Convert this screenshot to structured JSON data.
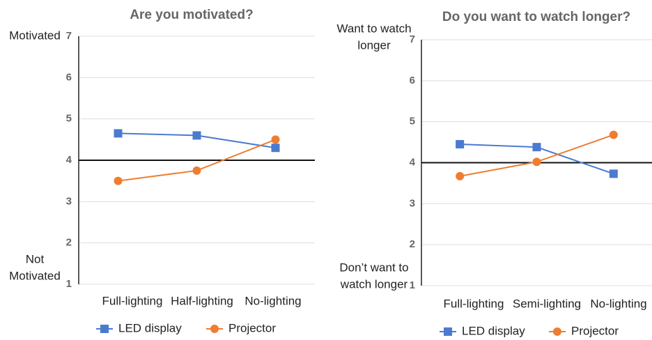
{
  "chart_data": [
    {
      "type": "line",
      "title": "Are you motivated?",
      "categories": [
        "Full-lighting",
        "Half-lighting",
        "No-lighting"
      ],
      "series": [
        {
          "name": "LED display",
          "color": "#4a7bd0",
          "marker": "square",
          "values": [
            4.65,
            4.6,
            4.3
          ]
        },
        {
          "name": "Projector",
          "color": "#ee7d31",
          "marker": "circle",
          "values": [
            3.5,
            3.75,
            4.5
          ]
        }
      ],
      "ylim": [
        1,
        7
      ],
      "yticks": [
        1,
        2,
        3,
        4,
        5,
        6,
        7
      ],
      "grid": true,
      "reference_line": 4,
      "annotation_top": [
        "Motivated"
      ],
      "annotation_bottom": [
        "Not",
        "Motivated"
      ],
      "legend": "bottom"
    },
    {
      "type": "line",
      "title": "Do you want to watch longer?",
      "categories": [
        "Full-lighting",
        "Semi-lighting",
        "No-lighting"
      ],
      "series": [
        {
          "name": "LED display",
          "color": "#4a7bd0",
          "marker": "square",
          "values": [
            4.45,
            4.38,
            3.73
          ]
        },
        {
          "name": "Projector",
          "color": "#ee7d31",
          "marker": "circle",
          "values": [
            3.67,
            4.02,
            4.68
          ]
        }
      ],
      "ylim": [
        1,
        7
      ],
      "yticks": [
        1,
        2,
        3,
        4,
        5,
        6,
        7
      ],
      "grid": true,
      "reference_line": 4,
      "annotation_top": [
        "Want to watch",
        "longer"
      ],
      "annotation_bottom": [
        "Don’t want to",
        "watch longer"
      ],
      "legend": "bottom"
    }
  ]
}
